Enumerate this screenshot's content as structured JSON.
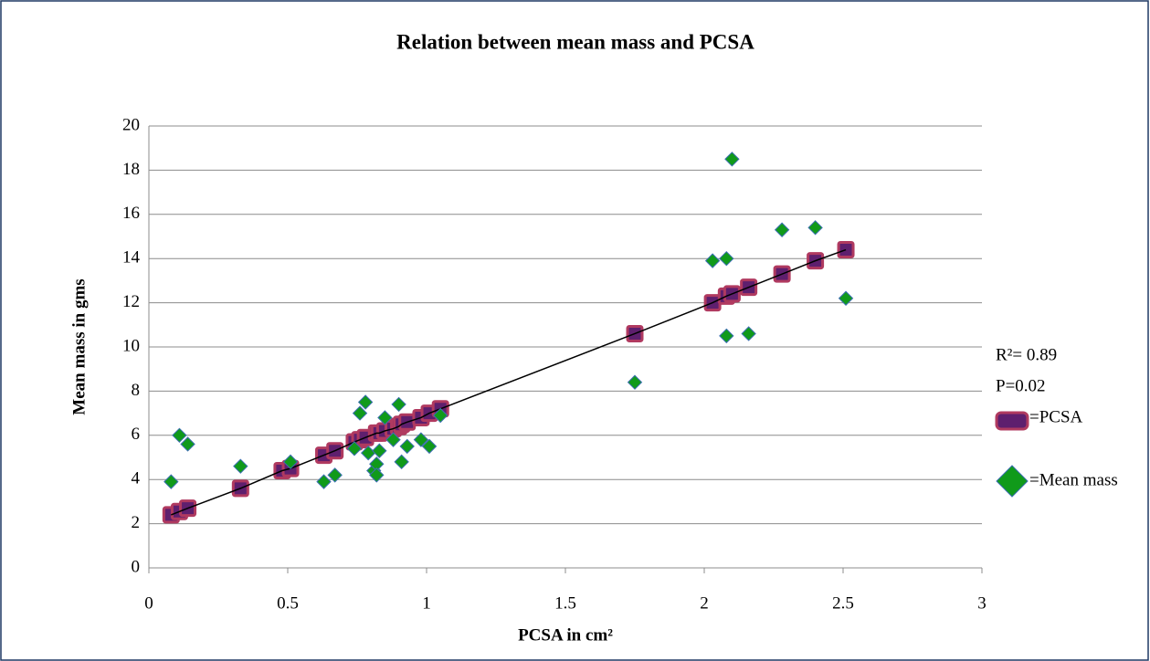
{
  "chart_data": {
    "type": "scatter",
    "title": "Relation between mean mass and PCSA",
    "x_label": "PCSA in cm²",
    "y_label": "Mean mass in gms",
    "annotations": [
      "R²= 0.89",
      "P=0.02"
    ],
    "xlim": [
      0,
      3
    ],
    "xticks": [
      0,
      0.5,
      1,
      1.5,
      2,
      2.5,
      3
    ],
    "ylim": [
      0,
      20
    ],
    "yticks": [
      0,
      2,
      4,
      6,
      8,
      10,
      12,
      14,
      16,
      18,
      20
    ],
    "grid": true,
    "series": [
      {
        "name": "=PCSA",
        "color": "#5e1f6e",
        "edge": "#b03a60",
        "marker": "square",
        "trendline": true,
        "x": [
          0.08,
          0.11,
          0.14,
          0.33,
          0.48,
          0.51,
          0.63,
          0.67,
          0.74,
          0.76,
          0.78,
          0.82,
          0.83,
          0.85,
          0.88,
          0.9,
          0.91,
          0.93,
          0.98,
          1.01,
          1.05,
          1.75,
          2.03,
          2.08,
          2.1,
          2.16,
          2.28,
          2.4,
          2.51
        ],
        "values": [
          2.4,
          2.55,
          2.7,
          3.6,
          4.4,
          4.5,
          5.1,
          5.3,
          5.7,
          5.8,
          5.9,
          6.1,
          6.1,
          6.2,
          6.3,
          6.4,
          6.5,
          6.6,
          6.8,
          7.0,
          7.2,
          10.6,
          12.0,
          12.3,
          12.4,
          12.7,
          13.3,
          13.9,
          14.4
        ]
      },
      {
        "name": "=Mean mass",
        "color": "#109a1a",
        "edge": "#3b6fb0",
        "marker": "diamond",
        "x": [
          0.08,
          0.11,
          0.14,
          0.33,
          0.51,
          0.63,
          0.67,
          0.74,
          0.76,
          0.78,
          0.79,
          0.81,
          0.82,
          0.82,
          0.83,
          0.85,
          0.88,
          0.9,
          0.91,
          0.93,
          0.98,
          1.01,
          1.05,
          1.75,
          2.03,
          2.08,
          2.08,
          2.1,
          2.16,
          2.28,
          2.4,
          2.51
        ],
        "values": [
          3.9,
          6.0,
          5.6,
          4.6,
          4.8,
          3.9,
          4.2,
          5.4,
          7.0,
          7.5,
          5.2,
          4.4,
          4.7,
          4.2,
          5.3,
          6.8,
          5.8,
          7.4,
          4.8,
          5.5,
          5.8,
          5.5,
          6.9,
          8.4,
          13.9,
          14.0,
          10.5,
          18.5,
          10.6,
          15.3,
          15.4,
          12.2
        ]
      }
    ]
  }
}
